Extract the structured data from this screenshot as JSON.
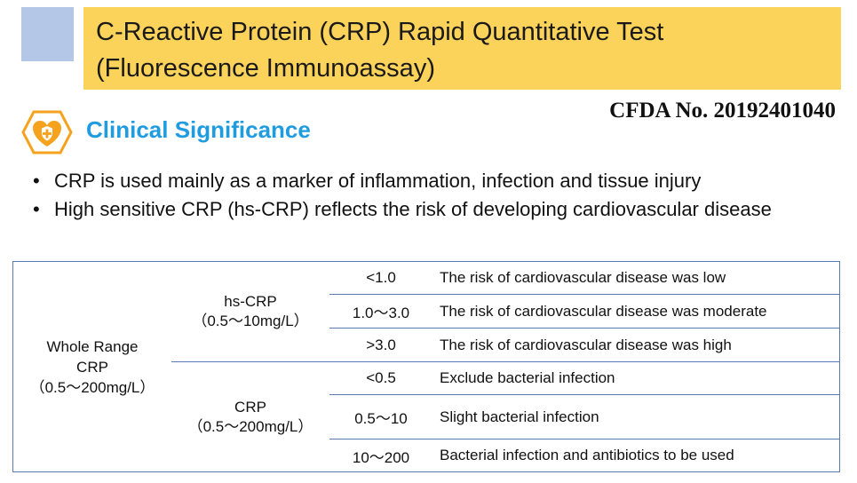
{
  "title": {
    "line1": "C-Reactive Protein (CRP) Rapid Quantitative Test",
    "line2": "(Fluorescence Immunoassay)"
  },
  "cfda": "CFDA No. 20192401040",
  "section": {
    "heading": "Clinical Significance",
    "icon": "heart-shield-plus-icon"
  },
  "bullets": [
    "CRP is used mainly as a marker of inflammation, infection and tissue injury",
    "High sensitive CRP (hs-CRP) reflects the risk of developing cardiovascular disease"
  ],
  "table": {
    "whole_range": {
      "line1": "Whole Range",
      "line2": "CRP",
      "line3": "（0.5～200mg/L）"
    },
    "groups": [
      {
        "name": "hs-CRP",
        "range": "（0.5～10mg/L）",
        "rows": [
          {
            "value": "<1.0",
            "meaning": "The risk of cardiovascular disease was low"
          },
          {
            "value": "1.0～3.0",
            "meaning": "The risk of cardiovascular disease was moderate"
          },
          {
            "value": ">3.0",
            "meaning": "The risk of cardiovascular disease was high"
          }
        ]
      },
      {
        "name": "CRP",
        "range": "（0.5～200mg/L）",
        "rows": [
          {
            "value": "<0.5",
            "meaning": "Exclude bacterial infection"
          },
          {
            "value": "0.5～10",
            "meaning": "Slight bacterial infection"
          },
          {
            "value": "10～200",
            "meaning": "Bacterial infection and antibiotics to be used"
          }
        ]
      }
    ]
  },
  "colors": {
    "title_bg": "#fcd35a",
    "accent_square": "#b4c7e7",
    "heading": "#1f9be0",
    "table_border": "#5b7ab3",
    "icon_orange": "#f5a21e"
  }
}
